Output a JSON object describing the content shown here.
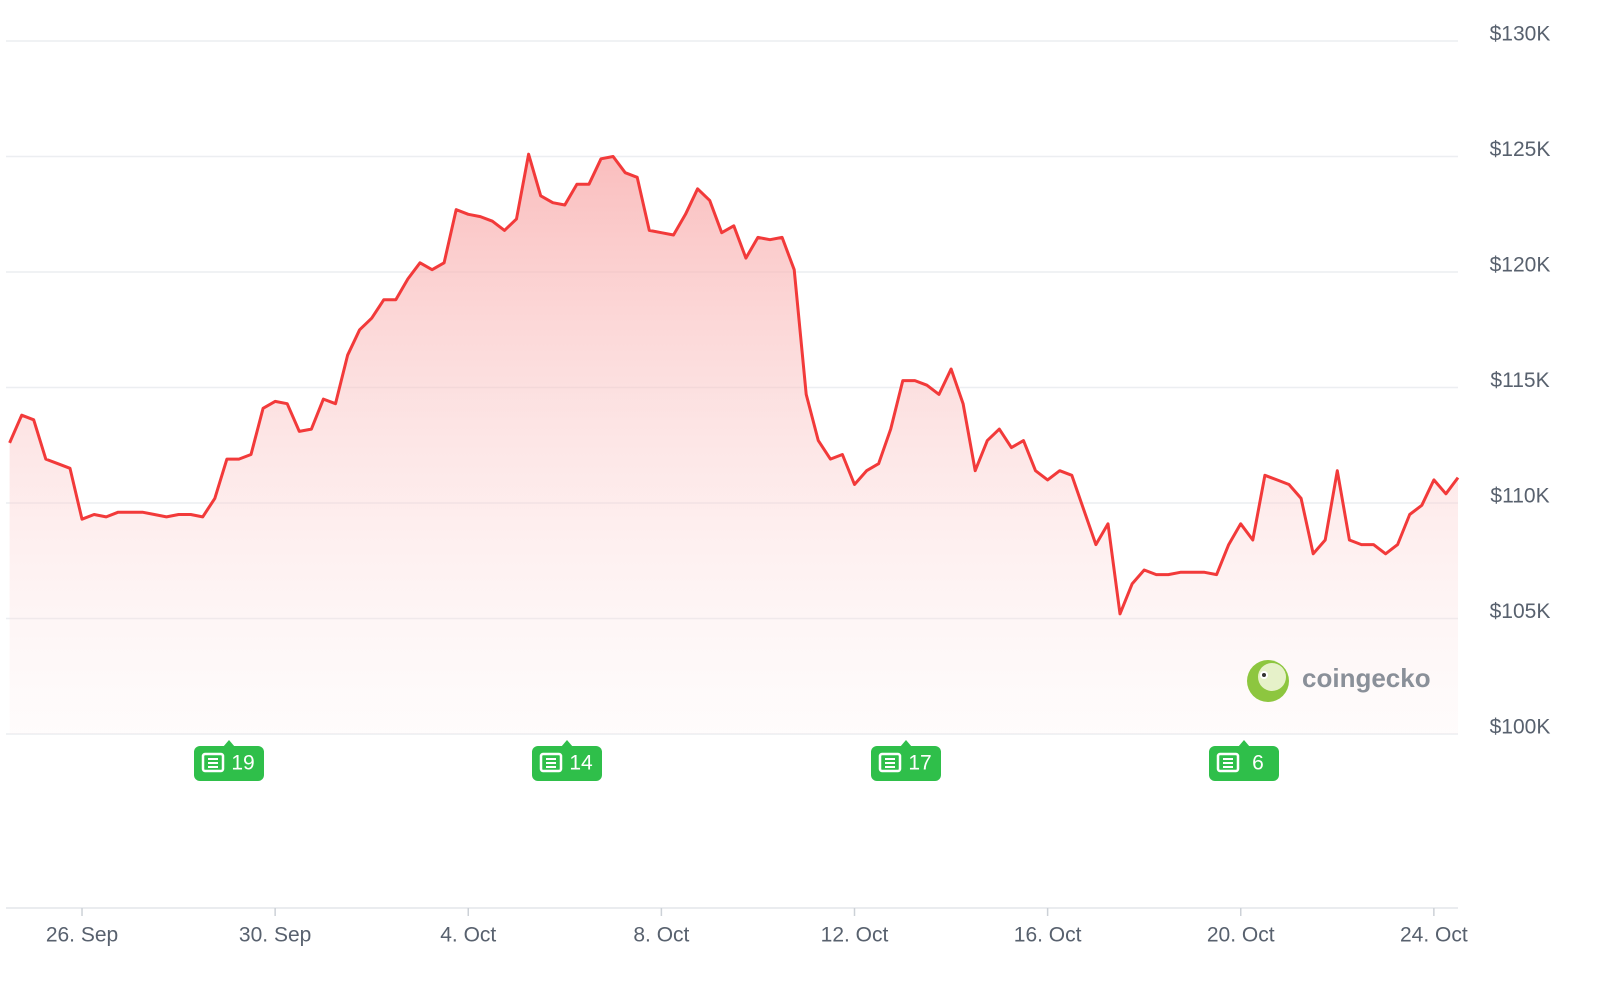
{
  "chart_data": {
    "type": "line",
    "categories": [
      null,
      null,
      null,
      null,
      null,
      null,
      "26. Sep",
      null,
      null,
      null,
      null,
      null,
      null,
      null,
      null,
      null,
      null,
      null,
      null,
      null,
      null,
      null,
      "30. Sep",
      null,
      null,
      null,
      null,
      null,
      null,
      null,
      null,
      null,
      null,
      null,
      null,
      null,
      null,
      null,
      "4. Oct",
      null,
      null,
      null,
      null,
      null,
      null,
      null,
      null,
      null,
      null,
      null,
      null,
      null,
      null,
      null,
      "8. Oct",
      null,
      null,
      null,
      null,
      null,
      null,
      null,
      null,
      null,
      null,
      null,
      null,
      null,
      null,
      null,
      "12. Oct",
      null,
      null,
      null,
      null,
      null,
      null,
      null,
      null,
      null,
      null,
      null,
      null,
      null,
      null,
      null,
      "16. Oct",
      null,
      null,
      null,
      null,
      null,
      null,
      null,
      null,
      null,
      null,
      null,
      null,
      null,
      null,
      null,
      "20. Oct",
      null,
      null,
      null,
      null,
      null,
      null,
      null,
      null,
      null,
      null,
      null,
      null,
      null,
      null,
      null,
      "24. Oct",
      null,
      null
    ],
    "values": [
      112600,
      113800,
      113600,
      111900,
      111700,
      111500,
      109300,
      109500,
      109400,
      109600,
      109600,
      109600,
      109500,
      109400,
      109500,
      109500,
      109400,
      110200,
      111900,
      111900,
      112100,
      114100,
      114400,
      114300,
      113100,
      113200,
      114500,
      114300,
      116400,
      117500,
      118000,
      118800,
      118800,
      119700,
      120400,
      120100,
      120400,
      122700,
      122500,
      122400,
      122200,
      121800,
      122300,
      125100,
      123300,
      123000,
      122900,
      123800,
      123800,
      124900,
      125000,
      124300,
      124100,
      121800,
      121700,
      121600,
      122500,
      123600,
      123100,
      121700,
      122000,
      120600,
      121500,
      121400,
      121500,
      120100,
      114700,
      112700,
      111900,
      112100,
      110800,
      111400,
      111700,
      113200,
      115300,
      115300,
      115100,
      114700,
      115800,
      114300,
      111400,
      112700,
      113200,
      112400,
      112700,
      111400,
      111000,
      111400,
      111200,
      109700,
      108200,
      109100,
      105200,
      106500,
      107100,
      106900,
      106900,
      107000,
      107000,
      107000,
      106900,
      108200,
      109100,
      108400,
      111200,
      111000,
      110800,
      110200,
      107800,
      108400,
      111400,
      108400,
      108200,
      108200,
      107800,
      108200,
      109500,
      109900,
      111000,
      110400,
      111100
    ],
    "color": "#f23a3a",
    "ylim": [
      100000,
      130000
    ],
    "yticks": [
      {
        "value": 100000,
        "label": "$100K"
      },
      {
        "value": 105000,
        "label": "$105K"
      },
      {
        "value": 110000,
        "label": "$110K"
      },
      {
        "value": 115000,
        "label": "$115K"
      },
      {
        "value": 120000,
        "label": "$120K"
      },
      {
        "value": 125000,
        "label": "$125K"
      },
      {
        "value": 130000,
        "label": "$130K"
      }
    ],
    "grid": true,
    "annotations": [
      "19",
      "14",
      "17",
      "6"
    ],
    "watermark": "coingecko"
  }
}
